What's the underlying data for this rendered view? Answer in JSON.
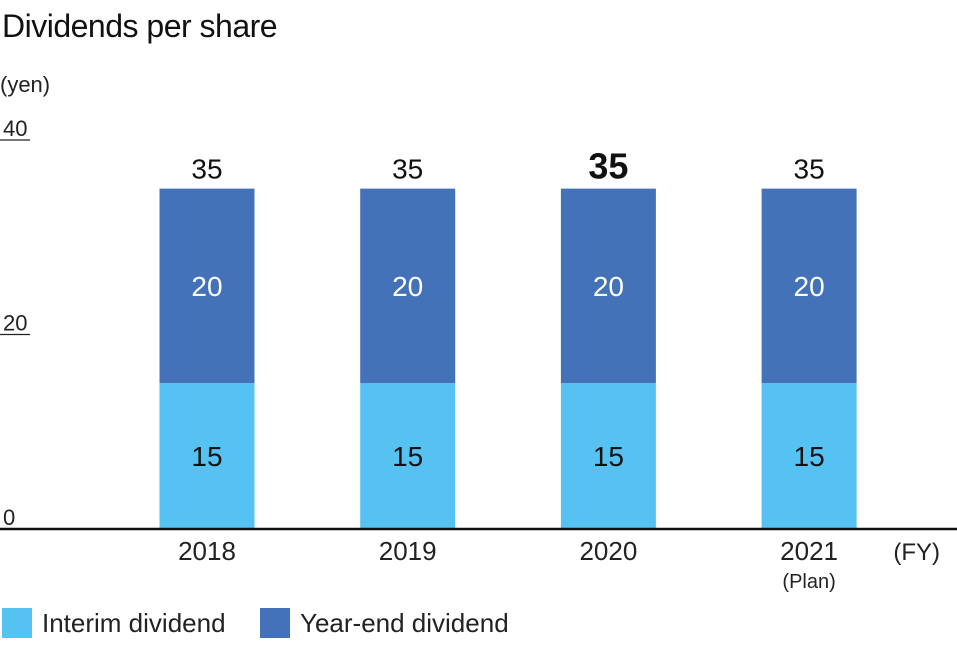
{
  "chart_data": {
    "type": "bar",
    "stacked": true,
    "title": "Dividends per share",
    "ylabel": "(yen)",
    "xlabel": "(FY)",
    "ylim": [
      0,
      40
    ],
    "yticks": [
      "0",
      "20",
      "40"
    ],
    "categories": [
      "2018",
      "2019",
      "2020",
      "2021"
    ],
    "category_sublabels": [
      "",
      "",
      "",
      "(Plan)"
    ],
    "series": [
      {
        "name": "Interim dividend",
        "values": [
          15,
          15,
          15,
          15
        ],
        "color": "#56c2f2",
        "labels": [
          "15",
          "15",
          "15",
          "15"
        ]
      },
      {
        "name": "Year-end dividend",
        "values": [
          20,
          20,
          20,
          20
        ],
        "color": "#4472b8",
        "labels": [
          "20",
          "20",
          "20",
          "20"
        ]
      }
    ],
    "totals": [
      "35",
      "35",
      "35",
      "35"
    ],
    "emphasized_index": 2,
    "grid": false,
    "legend_position": "bottom-left"
  }
}
